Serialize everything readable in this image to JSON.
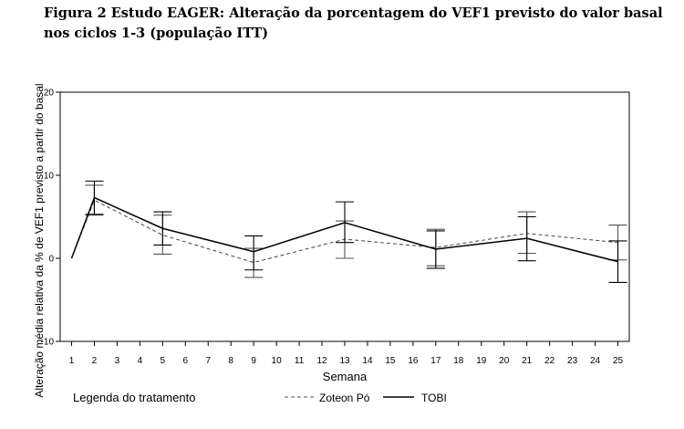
{
  "figure": {
    "title": "Figura 2 Estudo EAGER: Alteração da porcentagem do VEF1 previsto do valor basal nos ciclos 1-3 (população ITT)"
  },
  "chart_data": {
    "type": "line",
    "title": "",
    "xlabel": "Semana",
    "ylabel": "Alteração média relativa da % de VEF1 previsto a partir do basal",
    "x_ticks": [
      1,
      2,
      3,
      4,
      5,
      6,
      7,
      8,
      9,
      10,
      11,
      12,
      13,
      14,
      15,
      16,
      17,
      18,
      19,
      20,
      21,
      22,
      23,
      24,
      25
    ],
    "y_ticks": [
      -10,
      0,
      10,
      20
    ],
    "xlim": [
      0.5,
      25.5
    ],
    "ylim": [
      -10,
      20
    ],
    "grid": false,
    "legend": {
      "title": "Legenda do tratamento",
      "placement": "bottom"
    },
    "series": [
      {
        "name": "Zoteon Pó",
        "style": "dashed",
        "color": "#555555",
        "points": [
          {
            "x": 1,
            "y": 0,
            "lo": 0,
            "hi": 0
          },
          {
            "x": 2,
            "y": 7.0,
            "lo": 5.2,
            "hi": 8.8
          },
          {
            "x": 5,
            "y": 2.8,
            "lo": 0.5,
            "hi": 5.2
          },
          {
            "x": 9,
            "y": -0.5,
            "lo": -2.3,
            "hi": 1.2
          },
          {
            "x": 13,
            "y": 2.3,
            "lo": 0.0,
            "hi": 4.5
          },
          {
            "x": 17,
            "y": 1.3,
            "lo": -0.9,
            "hi": 3.5
          },
          {
            "x": 21,
            "y": 3.0,
            "lo": 0.6,
            "hi": 5.6
          },
          {
            "x": 25,
            "y": 1.9,
            "lo": -0.2,
            "hi": 4.0
          }
        ]
      },
      {
        "name": "TOBI",
        "style": "solid",
        "color": "#000000",
        "points": [
          {
            "x": 1,
            "y": 0,
            "lo": 0,
            "hi": 0
          },
          {
            "x": 2,
            "y": 7.3,
            "lo": 5.3,
            "hi": 9.3
          },
          {
            "x": 5,
            "y": 3.6,
            "lo": 1.6,
            "hi": 5.6
          },
          {
            "x": 9,
            "y": 0.8,
            "lo": -1.4,
            "hi": 2.7
          },
          {
            "x": 13,
            "y": 4.3,
            "lo": 1.9,
            "hi": 6.8
          },
          {
            "x": 17,
            "y": 1.1,
            "lo": -1.2,
            "hi": 3.3
          },
          {
            "x": 21,
            "y": 2.4,
            "lo": -0.3,
            "hi": 5.0
          },
          {
            "x": 25,
            "y": -0.4,
            "lo": -2.9,
            "hi": 2.1
          }
        ]
      }
    ]
  }
}
